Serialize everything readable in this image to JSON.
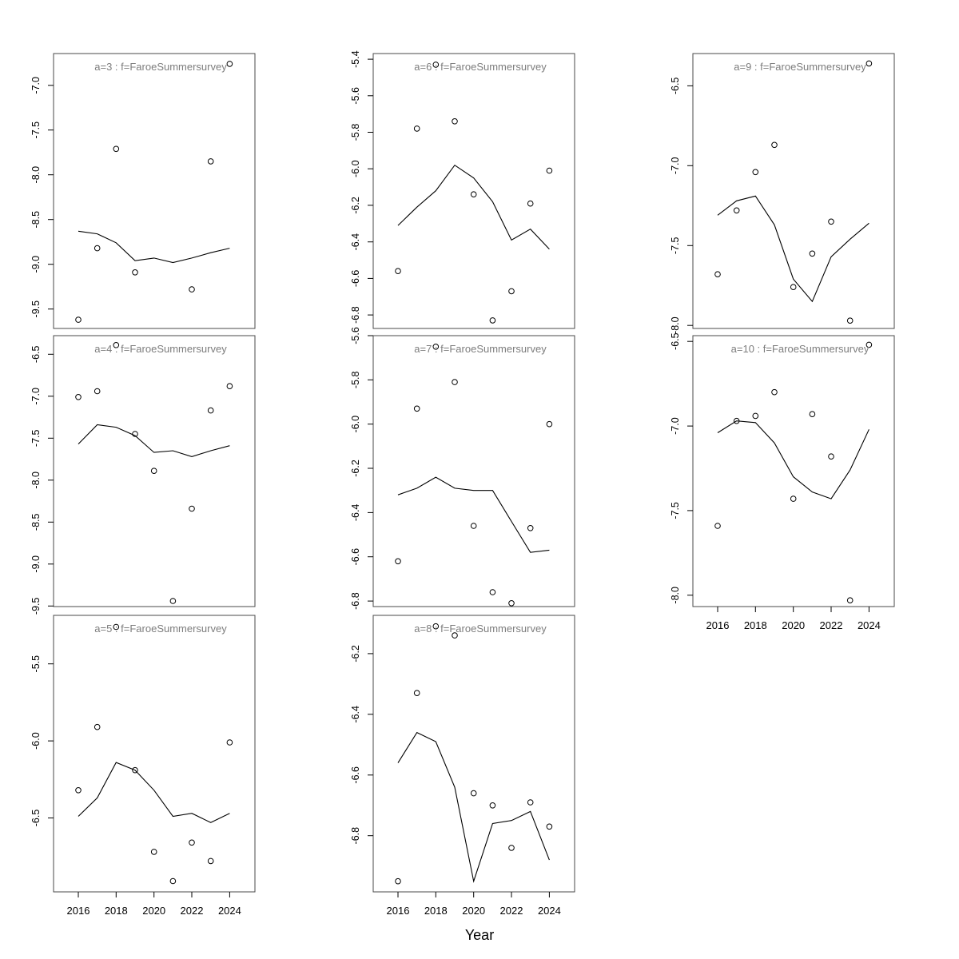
{
  "figure": {
    "xlabel": "Year",
    "x_tick_years": [
      2016,
      2018,
      2020,
      2022,
      2024
    ],
    "years": [
      2016,
      2017,
      2018,
      2019,
      2020,
      2021,
      2022,
      2023,
      2024
    ],
    "survey_name": "FaroeSummersurvey",
    "colors": {
      "box": "#4a4a4a",
      "axis_text": "#000000",
      "title_text": "#7d7d7d",
      "point": "#000000",
      "fit_line": "#000000",
      "background": "#ffffff"
    }
  },
  "chart_data": [
    {
      "type": "scatter",
      "title": "a=3 : f=FaroeSummersurvey",
      "facet": {
        "a": 3,
        "f": "FaroeSummersurvey"
      },
      "grid": {
        "col": 0,
        "row": 0
      },
      "show_x_axis": false,
      "ylim": [
        -9.717,
        -6.645
      ],
      "y_ticks": [
        -7.0,
        -7.5,
        -8.0,
        -8.5,
        -9.0,
        -9.5
      ],
      "points": {
        "x": [
          2016,
          2017,
          2018,
          2019,
          2022,
          2023,
          2024
        ],
        "y": [
          -9.62,
          -8.82,
          -7.71,
          -9.09,
          -9.28,
          -7.85,
          -6.76
        ]
      },
      "fit_line": {
        "y": [
          -8.63,
          -8.66,
          -8.76,
          -8.96,
          -8.93,
          -8.98,
          -8.93,
          -8.87,
          -8.82
        ]
      }
    },
    {
      "type": "scatter",
      "title": "a=4 : f=FaroeSummersurvey",
      "facet": {
        "a": 4,
        "f": "FaroeSummersurvey"
      },
      "grid": {
        "col": 0,
        "row": 1
      },
      "show_x_axis": false,
      "ylim": [
        -9.507,
        -6.278
      ],
      "y_ticks": [
        -6.5,
        -7.0,
        -7.5,
        -8.0,
        -8.5,
        -9.0,
        -9.5
      ],
      "points": {
        "x": [
          2016,
          2017,
          2018,
          2019,
          2020,
          2021,
          2022,
          2023,
          2024
        ],
        "y": [
          -7.01,
          -6.94,
          -6.39,
          -7.45,
          -7.89,
          -9.44,
          -8.34,
          -7.17,
          -6.88
        ]
      },
      "fit_line": {
        "y": [
          -7.57,
          -7.34,
          -7.37,
          -7.47,
          -7.67,
          -7.65,
          -7.72,
          -7.65,
          -7.59
        ]
      }
    },
    {
      "type": "scatter",
      "title": "a=5 : f=FaroeSummersurvey",
      "facet": {
        "a": 5,
        "f": "FaroeSummersurvey"
      },
      "grid": {
        "col": 0,
        "row": 2
      },
      "show_x_axis": true,
      "ylim": [
        -6.98,
        -5.185
      ],
      "y_ticks": [
        -5.5,
        -6.0,
        -6.5
      ],
      "points": {
        "x": [
          2016,
          2017,
          2018,
          2019,
          2020,
          2021,
          2022,
          2023,
          2024
        ],
        "y": [
          -6.32,
          -5.91,
          -5.26,
          -6.19,
          -6.72,
          -6.91,
          -6.66,
          -6.78,
          -6.01
        ]
      },
      "fit_line": {
        "y": [
          -6.49,
          -6.37,
          -6.14,
          -6.19,
          -6.32,
          -6.49,
          -6.47,
          -6.53,
          -6.47
        ]
      }
    },
    {
      "type": "scatter",
      "title": "a=6 : f=FaroeSummersurvey",
      "facet": {
        "a": 6,
        "f": "FaroeSummersurvey"
      },
      "grid": {
        "col": 1,
        "row": 0
      },
      "show_x_axis": false,
      "ylim": [
        -6.874,
        -5.369
      ],
      "y_ticks": [
        -5.4,
        -5.6,
        -5.8,
        -6.0,
        -6.2,
        -6.4,
        -6.6,
        -6.8
      ],
      "points": {
        "x": [
          2016,
          2017,
          2018,
          2019,
          2020,
          2021,
          2022,
          2023,
          2024
        ],
        "y": [
          -6.56,
          -5.78,
          -5.43,
          -5.74,
          -6.14,
          -6.83,
          -6.67,
          -6.19,
          -6.01
        ]
      },
      "fit_line": {
        "y": [
          -6.31,
          -6.21,
          -6.12,
          -5.98,
          -6.05,
          -6.18,
          -6.39,
          -6.33,
          -6.44
        ]
      }
    },
    {
      "type": "scatter",
      "title": "a=7 : f=FaroeSummersurvey",
      "facet": {
        "a": 7,
        "f": "FaroeSummersurvey"
      },
      "grid": {
        "col": 1,
        "row": 1
      },
      "show_x_axis": false,
      "ylim": [
        -6.825,
        -5.6
      ],
      "y_ticks": [
        -5.6,
        -5.8,
        -6.0,
        -6.2,
        -6.4,
        -6.6,
        -6.8
      ],
      "points": {
        "x": [
          2016,
          2017,
          2018,
          2019,
          2020,
          2021,
          2022,
          2023,
          2024
        ],
        "y": [
          -6.62,
          -5.93,
          -5.65,
          -5.81,
          -6.46,
          -6.76,
          -6.81,
          -6.47,
          -6.0
        ]
      },
      "fit_line": {
        "y": [
          -6.32,
          -6.29,
          -6.24,
          -6.29,
          -6.3,
          -6.3,
          -6.44,
          -6.58,
          -6.57
        ]
      }
    },
    {
      "type": "scatter",
      "title": "a=8 : f=FaroeSummersurvey",
      "facet": {
        "a": 8,
        "f": "FaroeSummersurvey"
      },
      "grid": {
        "col": 1,
        "row": 2
      },
      "show_x_axis": true,
      "ylim": [
        -6.985,
        -6.074
      ],
      "y_ticks": [
        -6.2,
        -6.4,
        -6.6,
        -6.8
      ],
      "points": {
        "x": [
          2016,
          2017,
          2018,
          2019,
          2020,
          2021,
          2022,
          2023,
          2024
        ],
        "y": [
          -6.95,
          -6.33,
          -6.11,
          -6.14,
          -6.66,
          -6.7,
          -6.84,
          -6.69,
          -6.77
        ]
      },
      "fit_line": {
        "y": [
          -6.56,
          -6.46,
          -6.49,
          -6.64,
          -6.95,
          -6.76,
          -6.75,
          -6.72,
          -6.88
        ]
      }
    },
    {
      "type": "scatter",
      "title": "a=9 : f=FaroeSummersurvey",
      "facet": {
        "a": 9,
        "f": "FaroeSummersurvey"
      },
      "grid": {
        "col": 2,
        "row": 0
      },
      "show_x_axis": false,
      "ylim": [
        -8.019,
        -6.298
      ],
      "y_ticks": [
        -6.5,
        -7.0,
        -7.5,
        -8.0
      ],
      "points": {
        "x": [
          2016,
          2017,
          2018,
          2019,
          2020,
          2021,
          2022,
          2023,
          2024
        ],
        "y": [
          -7.68,
          -7.28,
          -7.04,
          -6.87,
          -7.76,
          -7.55,
          -7.35,
          -7.97,
          -6.36
        ]
      },
      "fit_line": {
        "y": [
          -7.31,
          -7.22,
          -7.19,
          -7.37,
          -7.71,
          -7.85,
          -7.57,
          -7.46,
          -7.36
        ]
      }
    },
    {
      "type": "scatter",
      "title": "a=10 : f=FaroeSummersurvey",
      "facet": {
        "a": 10,
        "f": "FaroeSummersurvey"
      },
      "grid": {
        "col": 2,
        "row": 1
      },
      "show_x_axis": true,
      "ylim": [
        -8.067,
        -6.466
      ],
      "y_ticks": [
        -6.5,
        -7.0,
        -7.5,
        -8.0
      ],
      "points": {
        "x": [
          2016,
          2017,
          2018,
          2019,
          2020,
          2021,
          2022,
          2023,
          2024
        ],
        "y": [
          -7.59,
          -6.97,
          -6.94,
          -6.8,
          -7.43,
          -6.93,
          -7.18,
          -8.03,
          -6.52
        ]
      },
      "fit_line": {
        "y": [
          -7.04,
          -6.97,
          -6.98,
          -7.1,
          -7.3,
          -7.39,
          -7.43,
          -7.26,
          -7.02
        ]
      }
    }
  ]
}
